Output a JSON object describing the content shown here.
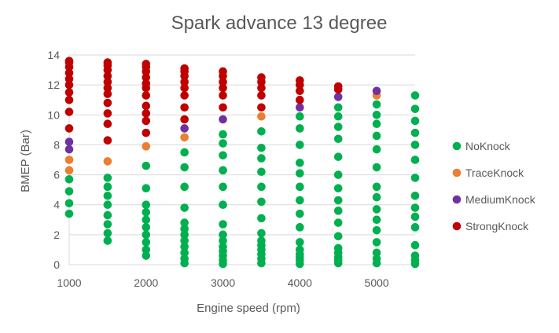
{
  "chart_data": {
    "type": "scatter",
    "title": "Spark advance 13 degree",
    "xlabel": "Engine speed (rpm)",
    "ylabel": "BMEP (Bar)",
    "xlim": [
      1000,
      5500
    ],
    "ylim": [
      0,
      14
    ],
    "x_ticks": [
      "1000",
      "2000",
      "3000",
      "4000",
      "5000"
    ],
    "y_ticks": [
      "0",
      "2",
      "4",
      "6",
      "8",
      "10",
      "12",
      "14"
    ],
    "grid": "horizontal",
    "legend_position": "right",
    "series": [
      {
        "name": "NoKnock",
        "color": "#00B050",
        "points": [
          [
            1000,
            3.4
          ],
          [
            1000,
            4.1
          ],
          [
            1000,
            4.9
          ],
          [
            1000,
            5.7
          ],
          [
            1500,
            1.6
          ],
          [
            1500,
            2.1
          ],
          [
            1500,
            2.7
          ],
          [
            1500,
            3.3
          ],
          [
            1500,
            4.0
          ],
          [
            1500,
            4.6
          ],
          [
            1500,
            5.2
          ],
          [
            1500,
            5.8
          ],
          [
            2000,
            0.6
          ],
          [
            2000,
            1.0
          ],
          [
            2000,
            1.5
          ],
          [
            2000,
            2.0
          ],
          [
            2000,
            2.5
          ],
          [
            2000,
            3.0
          ],
          [
            2000,
            3.5
          ],
          [
            2000,
            4.0
          ],
          [
            2000,
            5.1
          ],
          [
            2000,
            6.6
          ],
          [
            2500,
            0.1
          ],
          [
            2500,
            0.4
          ],
          [
            2500,
            0.8
          ],
          [
            2500,
            1.2
          ],
          [
            2500,
            1.6
          ],
          [
            2500,
            2.0
          ],
          [
            2500,
            2.4
          ],
          [
            2500,
            2.8
          ],
          [
            2500,
            3.8
          ],
          [
            2500,
            5.2
          ],
          [
            2500,
            6.5
          ],
          [
            2500,
            7.5
          ],
          [
            3000,
            0.05
          ],
          [
            3000,
            0.3
          ],
          [
            3000,
            0.6
          ],
          [
            3000,
            0.9
          ],
          [
            3000,
            1.2
          ],
          [
            3000,
            1.6
          ],
          [
            3000,
            2.0
          ],
          [
            3000,
            2.7
          ],
          [
            3000,
            4.0
          ],
          [
            3000,
            5.2
          ],
          [
            3000,
            6.3
          ],
          [
            3000,
            7.3
          ],
          [
            3000,
            8.1
          ],
          [
            3000,
            8.7
          ],
          [
            3500,
            0.1
          ],
          [
            3500,
            0.4
          ],
          [
            3500,
            0.7
          ],
          [
            3500,
            1.0
          ],
          [
            3500,
            1.3
          ],
          [
            3500,
            1.6
          ],
          [
            3500,
            2.1
          ],
          [
            3500,
            3.1
          ],
          [
            3500,
            4.2
          ],
          [
            3500,
            5.2
          ],
          [
            3500,
            6.2
          ],
          [
            3500,
            7.1
          ],
          [
            3500,
            7.8
          ],
          [
            3500,
            8.9
          ],
          [
            4000,
            0.05
          ],
          [
            4000,
            0.3
          ],
          [
            4000,
            0.5
          ],
          [
            4000,
            0.7
          ],
          [
            4000,
            1.0
          ],
          [
            4000,
            1.5
          ],
          [
            4000,
            2.5
          ],
          [
            4000,
            3.4
          ],
          [
            4000,
            4.3
          ],
          [
            4000,
            5.2
          ],
          [
            4000,
            6.1
          ],
          [
            4000,
            6.8
          ],
          [
            4000,
            8.0
          ],
          [
            4000,
            9.1
          ],
          [
            4000,
            9.9
          ],
          [
            4500,
            0.1
          ],
          [
            4500,
            0.3
          ],
          [
            4500,
            0.5
          ],
          [
            4500,
            0.8
          ],
          [
            4500,
            1.1
          ],
          [
            4500,
            1.9
          ],
          [
            4500,
            2.8
          ],
          [
            4500,
            3.6
          ],
          [
            4500,
            4.3
          ],
          [
            4500,
            5.1
          ],
          [
            4500,
            6.0
          ],
          [
            4500,
            7.2
          ],
          [
            4500,
            8.4
          ],
          [
            4500,
            9.2
          ],
          [
            4500,
            9.9
          ],
          [
            4500,
            10.5
          ],
          [
            5000,
            0.1
          ],
          [
            5000,
            0.4
          ],
          [
            5000,
            0.8
          ],
          [
            5000,
            1.5
          ],
          [
            5000,
            2.3
          ],
          [
            5000,
            3.0
          ],
          [
            5000,
            3.7
          ],
          [
            5000,
            4.5
          ],
          [
            5000,
            5.2
          ],
          [
            5000,
            6.5
          ],
          [
            5000,
            7.7
          ],
          [
            5000,
            8.6
          ],
          [
            5000,
            9.4
          ],
          [
            5000,
            10.0
          ],
          [
            5000,
            10.7
          ],
          [
            5500,
            0.05
          ],
          [
            5500,
            0.3
          ],
          [
            5500,
            0.6
          ],
          [
            5500,
            1.3
          ],
          [
            5500,
            2.5
          ],
          [
            5500,
            3.2
          ],
          [
            5500,
            3.8
          ],
          [
            5500,
            4.6
          ],
          [
            5500,
            5.8
          ],
          [
            5500,
            7.0
          ],
          [
            5500,
            8.0
          ],
          [
            5500,
            8.8
          ],
          [
            5500,
            9.6
          ],
          [
            5500,
            10.4
          ],
          [
            5500,
            11.3
          ]
        ]
      },
      {
        "name": "TraceKnock",
        "color": "#ED7D31",
        "points": [
          [
            1000,
            6.3
          ],
          [
            1000,
            7.0
          ],
          [
            1500,
            6.9
          ],
          [
            2000,
            7.9
          ],
          [
            2500,
            8.5
          ],
          [
            3500,
            9.9
          ],
          [
            5000,
            11.3
          ]
        ]
      },
      {
        "name": "MediumKnock",
        "color": "#7030A0",
        "points": [
          [
            1000,
            7.7
          ],
          [
            1000,
            8.2
          ],
          [
            2500,
            9.1
          ],
          [
            3000,
            9.7
          ],
          [
            4000,
            10.5
          ],
          [
            4500,
            11.2
          ],
          [
            5000,
            11.6
          ]
        ]
      },
      {
        "name": "StrongKnock",
        "color": "#C00000",
        "points": [
          [
            1000,
            9.1
          ],
          [
            1000,
            10.2
          ],
          [
            1000,
            11.0
          ],
          [
            1000,
            11.5
          ],
          [
            1000,
            12.0
          ],
          [
            1000,
            12.4
          ],
          [
            1000,
            12.8
          ],
          [
            1000,
            13.2
          ],
          [
            1000,
            13.5
          ],
          [
            1000,
            13.6
          ],
          [
            1500,
            8.3
          ],
          [
            1500,
            9.4
          ],
          [
            1500,
            10.1
          ],
          [
            1500,
            10.8
          ],
          [
            1500,
            11.4
          ],
          [
            1500,
            11.8
          ],
          [
            1500,
            12.2
          ],
          [
            1500,
            12.6
          ],
          [
            1500,
            13.0
          ],
          [
            1500,
            13.3
          ],
          [
            1500,
            13.5
          ],
          [
            2000,
            8.8
          ],
          [
            2000,
            9.6
          ],
          [
            2000,
            10.1
          ],
          [
            2000,
            10.6
          ],
          [
            2000,
            11.3
          ],
          [
            2000,
            11.8
          ],
          [
            2000,
            12.1
          ],
          [
            2000,
            12.5
          ],
          [
            2000,
            12.9
          ],
          [
            2000,
            13.2
          ],
          [
            2000,
            13.4
          ],
          [
            2500,
            9.7
          ],
          [
            2500,
            10.5
          ],
          [
            2500,
            11.3
          ],
          [
            2500,
            11.8
          ],
          [
            2500,
            12.2
          ],
          [
            2500,
            12.6
          ],
          [
            2500,
            12.9
          ],
          [
            2500,
            13.1
          ],
          [
            3000,
            10.5
          ],
          [
            3000,
            11.3
          ],
          [
            3000,
            11.8
          ],
          [
            3000,
            12.2
          ],
          [
            3000,
            12.6
          ],
          [
            3000,
            12.9
          ],
          [
            3500,
            10.5
          ],
          [
            3500,
            11.3
          ],
          [
            3500,
            11.8
          ],
          [
            3500,
            12.2
          ],
          [
            3500,
            12.5
          ],
          [
            4000,
            11.0
          ],
          [
            4000,
            11.6
          ],
          [
            4000,
            12.0
          ],
          [
            4000,
            12.3
          ],
          [
            4500,
            11.7
          ],
          [
            4500,
            11.9
          ]
        ]
      }
    ]
  }
}
